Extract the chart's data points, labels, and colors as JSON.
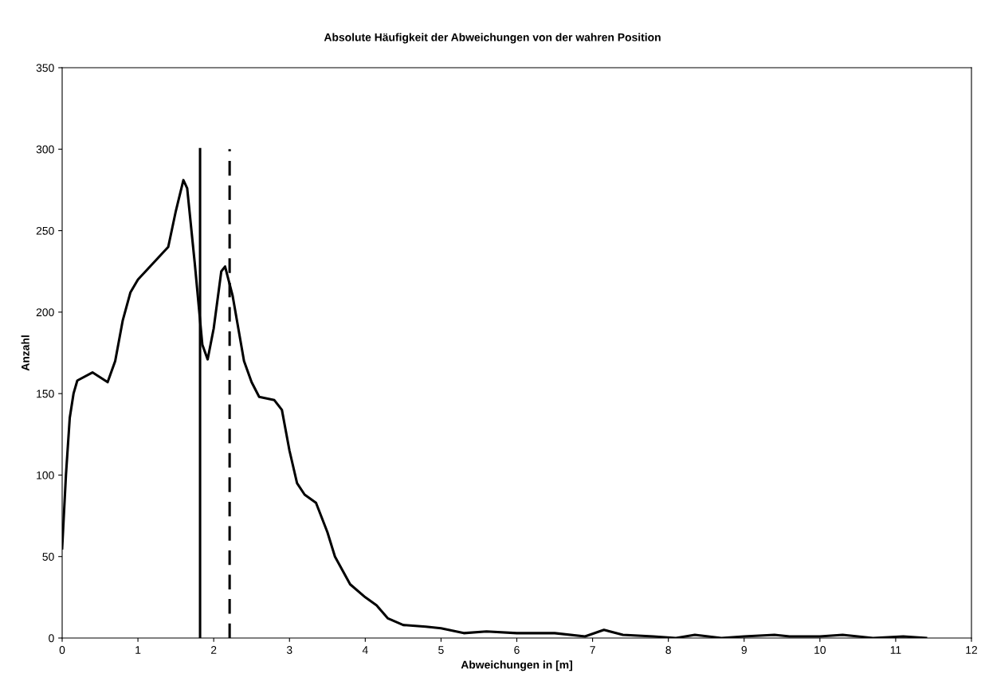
{
  "chart_data": {
    "type": "line",
    "title": "Absolute Häufigkeit der Abweichungen von der wahren Position",
    "xlabel": "Abweichungen in [m]",
    "ylabel": "Anzahl",
    "xlim": [
      0,
      12
    ],
    "ylim": [
      0,
      350
    ],
    "xticks": [
      0,
      1,
      2,
      3,
      4,
      5,
      6,
      7,
      8,
      9,
      10,
      11,
      12
    ],
    "yticks": [
      0,
      50,
      100,
      150,
      200,
      250,
      300,
      350
    ],
    "grid": false,
    "legend": false,
    "marker": "none",
    "series": [
      {
        "color": "#000000",
        "line_style": "solid",
        "x": [
          0,
          0.05,
          0.1,
          0.15,
          0.2,
          0.4,
          0.6,
          0.7,
          0.8,
          0.9,
          1.0,
          1.2,
          1.4,
          1.5,
          1.6,
          1.65,
          1.75,
          1.85,
          1.92,
          2.0,
          2.1,
          2.15,
          2.25,
          2.4,
          2.5,
          2.6,
          2.8,
          2.9,
          3.0,
          3.1,
          3.2,
          3.35,
          3.5,
          3.6,
          3.8,
          4.0,
          4.15,
          4.3,
          4.5,
          4.8,
          5.0,
          5.3,
          5.6,
          6.0,
          6.5,
          6.9,
          7.15,
          7.4,
          7.8,
          8.1,
          8.35,
          8.7,
          9.0,
          9.4,
          9.6,
          10.0,
          10.3,
          10.7,
          11.1,
          11.4
        ],
        "values": [
          55,
          100,
          135,
          150,
          158,
          163,
          157,
          170,
          195,
          212,
          220,
          230,
          240,
          262,
          281,
          276,
          230,
          180,
          171,
          190,
          225,
          228,
          210,
          170,
          157,
          148,
          146,
          140,
          115,
          95,
          88,
          83,
          65,
          50,
          33,
          25,
          20,
          12,
          8,
          7,
          6,
          3,
          4,
          3,
          3,
          1,
          5,
          2,
          1,
          0,
          2,
          0,
          1,
          2,
          1,
          1,
          2,
          0,
          1,
          0
        ]
      },
      {
        "color": "#000000",
        "line_style": "solid",
        "x": [
          1.82,
          1.82
        ],
        "values": [
          0,
          300
        ]
      },
      {
        "color": "#000000",
        "line_style": "dashed",
        "x": [
          2.21,
          2.21
        ],
        "values": [
          0,
          300
        ]
      }
    ]
  }
}
